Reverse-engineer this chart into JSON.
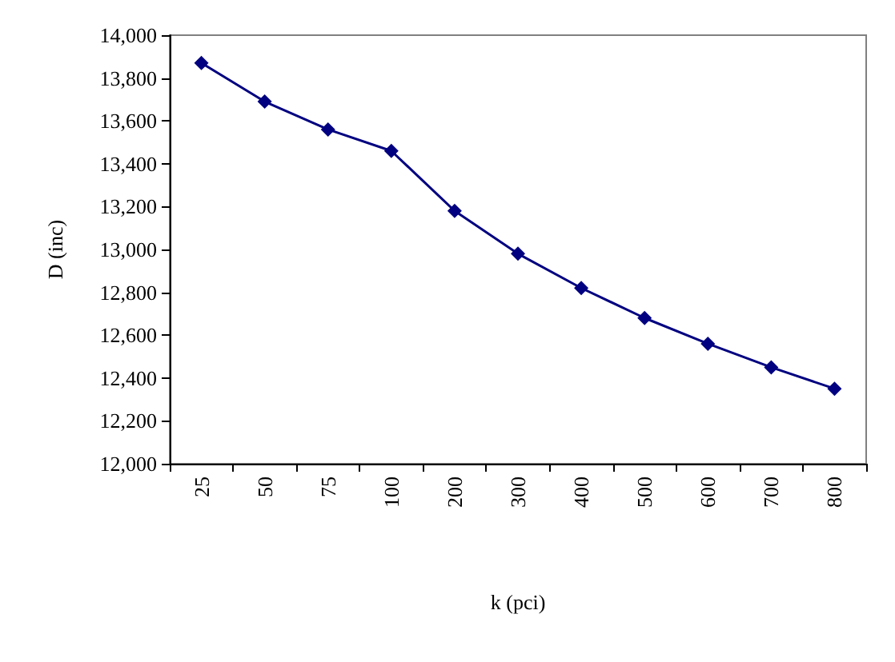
{
  "chart_data": {
    "type": "line",
    "xlabel": "k (pci)",
    "ylabel": "D (inc)",
    "categories": [
      "25",
      "50",
      "75",
      "100",
      "200",
      "300",
      "400",
      "500",
      "600",
      "700",
      "800"
    ],
    "series": [
      {
        "color": "#000080",
        "values": [
          13870,
          13690,
          13560,
          13460,
          13180,
          12980,
          12820,
          12680,
          12560,
          12450,
          12350
        ]
      }
    ],
    "ylim": [
      12000,
      14000
    ],
    "yticks": [
      {
        "value": 12000,
        "label": "12,000"
      },
      {
        "value": 12200,
        "label": "12,200"
      },
      {
        "value": 12400,
        "label": "12,400"
      },
      {
        "value": 12600,
        "label": "12,600"
      },
      {
        "value": 12800,
        "label": "12,800"
      },
      {
        "value": 13000,
        "label": "13,000"
      },
      {
        "value": 13200,
        "label": "13,200"
      },
      {
        "value": 13400,
        "label": "13,400"
      },
      {
        "value": 13600,
        "label": "13,600"
      },
      {
        "value": 13800,
        "label": "13,800"
      },
      {
        "value": 14000,
        "label": "14,000"
      }
    ],
    "marker": "diamond",
    "line_style": "solid",
    "grid": false
  }
}
